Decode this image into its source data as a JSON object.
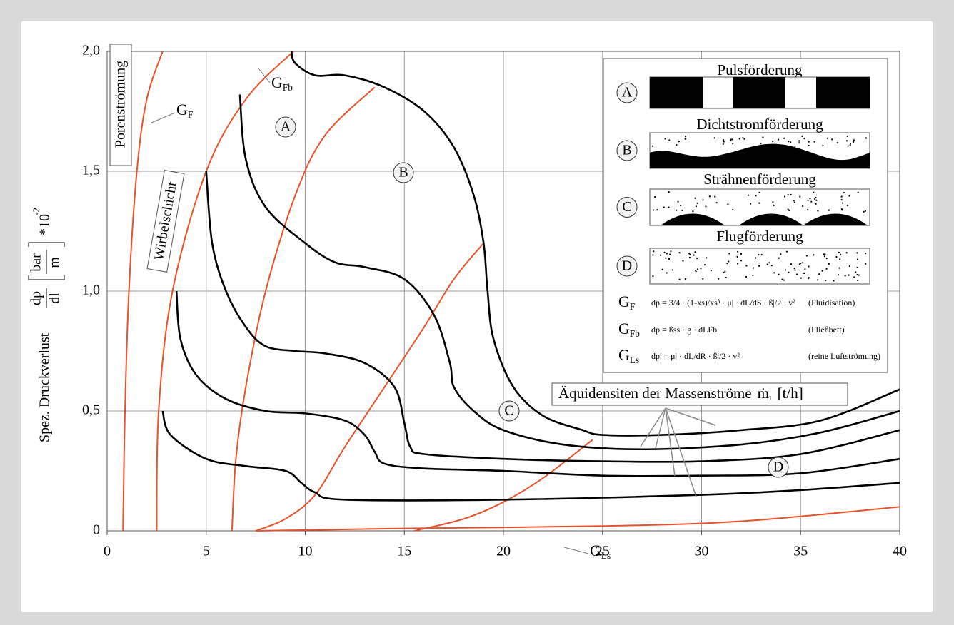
{
  "chart_data": {
    "type": "line",
    "ylabel": {
      "text": "Spez. Druckverlust",
      "fraction": [
        "dp",
        "dl"
      ],
      "unit": [
        "bar",
        "m"
      ],
      "factor": "*10",
      "exponent": "-2"
    },
    "xlim": [
      0,
      40
    ],
    "xticks": [
      0,
      5,
      10,
      15,
      20,
      25,
      30,
      35,
      40
    ],
    "ylim": [
      0,
      2
    ],
    "yticks": [
      0,
      {
        "value": 0.5,
        "label": "0,5"
      },
      {
        "value": 1,
        "label": "1,0"
      },
      {
        "value": 1.5,
        "label": "1,5"
      },
      {
        "value": 2,
        "label": "2,0"
      }
    ],
    "grid": true,
    "series": [
      {
        "color": "#e8522a",
        "x": [
          0.8,
          0.9,
          1.1,
          1.5,
          2.0,
          2.8
        ],
        "values": [
          0,
          0.5,
          1.0,
          1.5,
          1.8,
          2.0
        ]
      },
      {
        "color": "#e8522a",
        "x": [
          2.5,
          2.6,
          3.3,
          5,
          7,
          9.4
        ],
        "values": [
          0,
          0.5,
          1.0,
          1.5,
          1.8,
          2.0
        ]
      },
      {
        "color": "#e8522a",
        "x": [
          6.3,
          6.5,
          7,
          8,
          9.5,
          11,
          13.5
        ],
        "values": [
          0,
          0.3,
          0.6,
          1.0,
          1.4,
          1.65,
          1.85
        ]
      },
      {
        "color": "#e8522a",
        "x": [
          7.5,
          9,
          10.5,
          12,
          14,
          16,
          17.5,
          19
        ],
        "values": [
          0,
          0.05,
          0.15,
          0.35,
          0.6,
          0.85,
          1.05,
          1.2
        ]
      },
      {
        "color": "#e8522a",
        "x": [
          15.5,
          18,
          20,
          22,
          24.5
        ],
        "values": [
          0,
          0.05,
          0.12,
          0.22,
          0.38
        ]
      },
      {
        "color": "#e8522a",
        "x": [
          7.5,
          15,
          25,
          32,
          40
        ],
        "values": [
          0,
          0.01,
          0.02,
          0.04,
          0.1
        ]
      },
      {
        "color": "#000000",
        "x": [
          9.3,
          9.5,
          10.5,
          12,
          14,
          16,
          17.5,
          18.5,
          19,
          19.2,
          19.5,
          20.5,
          22,
          24,
          25,
          28,
          32,
          36,
          40
        ],
        "values": [
          2.0,
          1.95,
          1.9,
          1.9,
          1.85,
          1.75,
          1.6,
          1.4,
          1.2,
          1.0,
          0.8,
          0.6,
          0.48,
          0.42,
          0.4,
          0.4,
          0.42,
          0.46,
          0.59
        ]
      },
      {
        "color": "#000000",
        "x": [
          6.7,
          7,
          8,
          10,
          11.5,
          13,
          15,
          16.5,
          17.3,
          17.5,
          18.5,
          20,
          23,
          27,
          32,
          36,
          40
        ],
        "values": [
          1.82,
          1.55,
          1.35,
          1.2,
          1.12,
          1.1,
          1.05,
          0.9,
          0.7,
          0.6,
          0.5,
          0.42,
          0.36,
          0.34,
          0.36,
          0.41,
          0.5
        ]
      },
      {
        "color": "#000000",
        "x": [
          5,
          5.3,
          6,
          7,
          8,
          9.5,
          11,
          13,
          14.5,
          15,
          15.3,
          16,
          20,
          25,
          30,
          35,
          40
        ],
        "values": [
          1.5,
          1.2,
          1.0,
          0.85,
          0.77,
          0.75,
          0.74,
          0.7,
          0.6,
          0.45,
          0.35,
          0.32,
          0.3,
          0.29,
          0.29,
          0.32,
          0.42
        ]
      },
      {
        "color": "#000000",
        "x": [
          3.5,
          3.7,
          4.5,
          6,
          8,
          10,
          12,
          13,
          13.5,
          14,
          16,
          20,
          25,
          30,
          35,
          40
        ],
        "values": [
          1.0,
          0.8,
          0.65,
          0.55,
          0.5,
          0.49,
          0.46,
          0.4,
          0.33,
          0.28,
          0.26,
          0.25,
          0.23,
          0.23,
          0.24,
          0.3
        ]
      },
      {
        "color": "#000000",
        "x": [
          2.8,
          3.2,
          5,
          7,
          9,
          9.8,
          10.5,
          12,
          20,
          30,
          35,
          40
        ],
        "values": [
          0.5,
          0.4,
          0.3,
          0.27,
          0.25,
          0.2,
          0.16,
          0.13,
          0.13,
          0.15,
          0.17,
          0.2
        ]
      }
    ],
    "curve_labels": [
      {
        "text": "G",
        "sub": "F"
      },
      {
        "text": "G",
        "sub": "Fb"
      },
      {
        "text": "G",
        "sub": "Ls"
      }
    ],
    "regions": [
      "A",
      "B",
      "C",
      "D"
    ],
    "zone_labels": [
      "Porenströmung",
      "Wirbelschicht"
    ],
    "annotation": {
      "text": "Äquidensiten der Massenströme",
      "symbol": "ṁ",
      "sub": "i",
      "unit": "[t/h]"
    },
    "legend": {
      "panels": [
        {
          "letter": "A",
          "title": "Pulsförderung"
        },
        {
          "letter": "B",
          "title": "Dichtstromförderung"
        },
        {
          "letter": "C",
          "title": "Strähnenförderung"
        },
        {
          "letter": "D",
          "title": "Flugförderung"
        }
      ],
      "formulas": [
        {
          "expr": "dp = 3/4 · (1-xs)/xs³ · μ| · dL/dS · ß|/2 · v²",
          "note": "(Fluidisation)"
        },
        {
          "expr": "dp = ßss · g · dLFb",
          "note": "(Fließbett)"
        },
        {
          "expr": "dp| = μ| · dL/dR · ß|/2 · v²",
          "note": "(reine Luftströmung)"
        }
      ]
    }
  }
}
